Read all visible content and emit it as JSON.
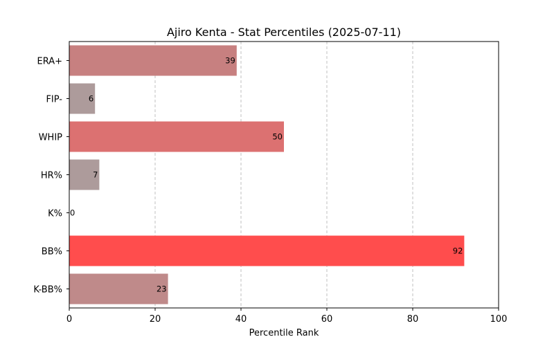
{
  "chart_data": {
    "type": "bar",
    "orientation": "horizontal",
    "title": "Ajiro Kenta - Stat Percentiles (2025-07-11)",
    "xlabel": "Percentile Rank",
    "ylabel": "",
    "xlim": [
      0,
      100
    ],
    "xticks": [
      0,
      20,
      40,
      60,
      80,
      100
    ],
    "grid": "x-axis, dashed",
    "categories": [
      "ERA+",
      "FIP-",
      "WHIP",
      "HR%",
      "K%",
      "BB%",
      "K-BB%"
    ],
    "values": [
      39,
      6,
      50,
      7,
      0,
      92,
      23
    ],
    "colors": [
      "#c78080",
      "#ad9b9b",
      "#dc7171",
      "#ad9b9b",
      "#a8a8a8",
      "#ff4d4d",
      "#bf8a8a"
    ]
  }
}
